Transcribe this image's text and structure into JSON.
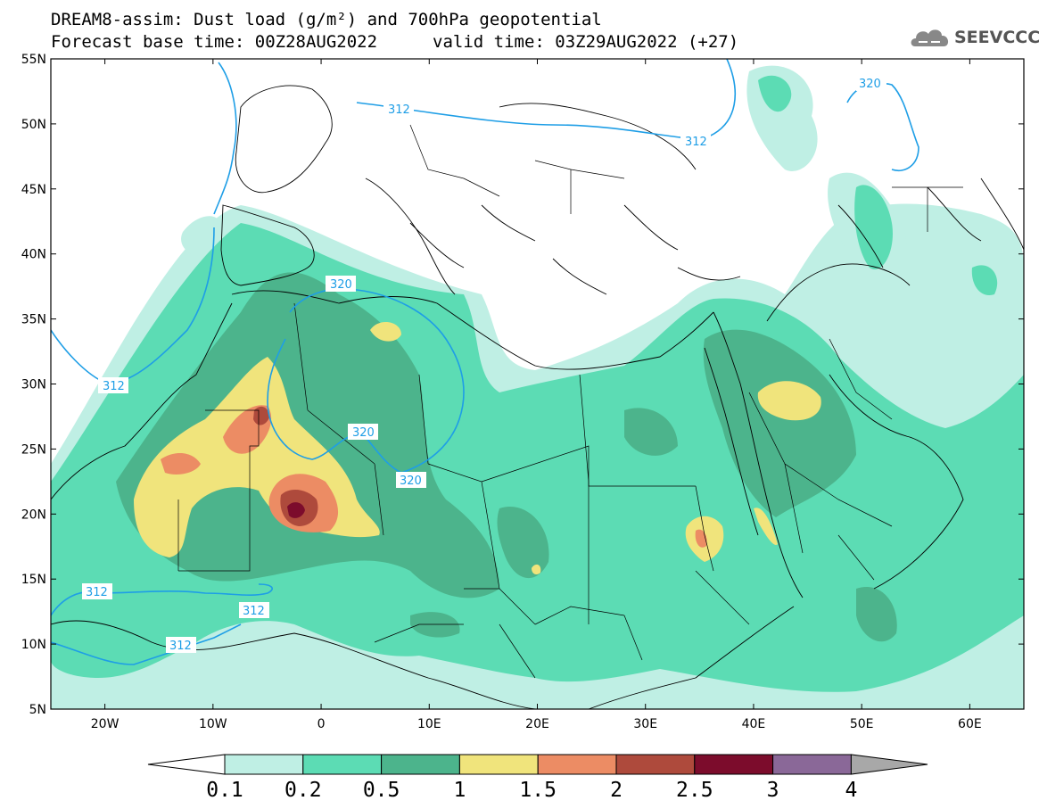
{
  "header": {
    "title": "DREAM8-assim: Dust load (g/m²) and 700hPa geopotential",
    "forecast_base": "Forecast base time: 00Z28AUG2022",
    "valid_time": "valid time: 03Z29AUG2022 (+27)",
    "logo_text": "SEEVCCC"
  },
  "map": {
    "lon_range": [
      -25,
      65
    ],
    "lat_range": [
      5,
      55
    ],
    "lat_ticks": [
      "55N",
      "50N",
      "45N",
      "40N",
      "35N",
      "30N",
      "25N",
      "20N",
      "15N",
      "10N",
      "5N"
    ],
    "lon_ticks": [
      "20W",
      "10W",
      "0",
      "10E",
      "20E",
      "30E",
      "40E",
      "50E",
      "60E"
    ],
    "contour_labels": [
      "312",
      "312",
      "320",
      "320",
      "312",
      "320",
      "320",
      "312",
      "312",
      "312"
    ]
  },
  "colorbar": {
    "labels": [
      "0.1",
      "0.2",
      "0.5",
      "1",
      "1.5",
      "2",
      "2.5",
      "3",
      "4"
    ],
    "colors": [
      "#ffffff",
      "#bfefe4",
      "#5cdcb4",
      "#4cb48c",
      "#f0e47c",
      "#ec8c64",
      "#ae4a3c",
      "#7c0c2c",
      "#8a6898",
      "#a8a8a8"
    ]
  },
  "colors": {
    "contour_line": "#1e9ee6",
    "border": "#000000"
  }
}
